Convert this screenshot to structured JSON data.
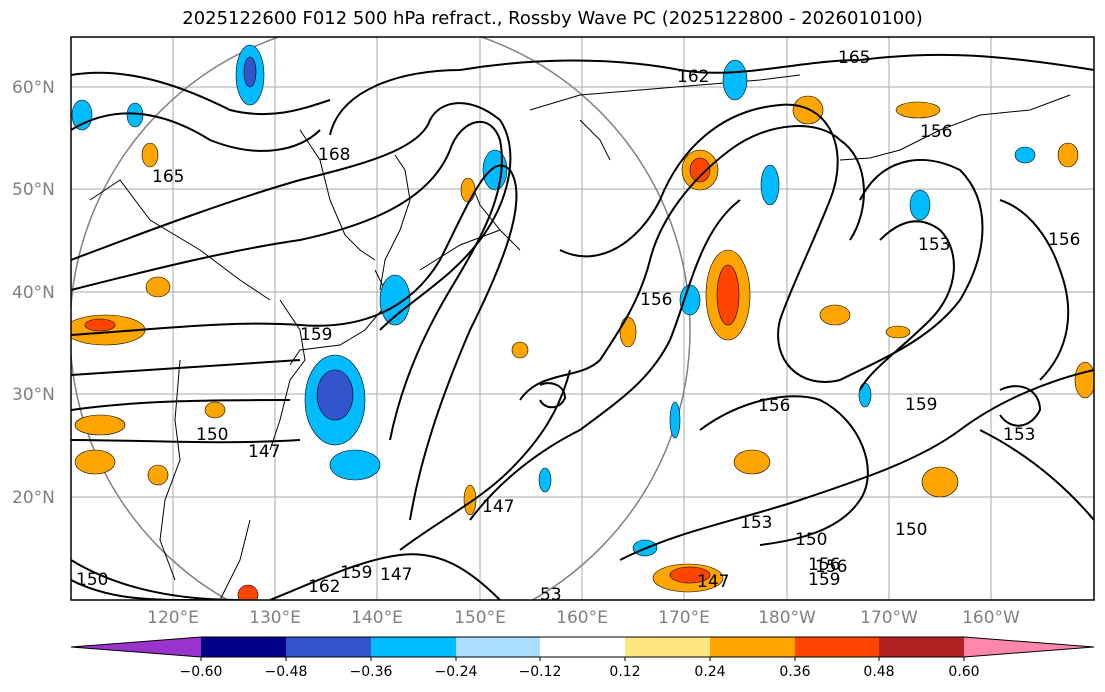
{
  "title": "2025122600 F012 500 hPa refract., Rossby Wave PC (2025122800 - 2026010100)",
  "map": {
    "lat_labels": [
      "60°N",
      "50°N",
      "40°N",
      "30°N",
      "20°N"
    ],
    "lon_labels": [
      "120°E",
      "130°E",
      "140°E",
      "150°E",
      "160°E",
      "170°E",
      "180°W",
      "170°W",
      "160°W"
    ],
    "contour_labels": [
      "165",
      "162",
      "156",
      "165",
      "168",
      "153",
      "156",
      "159",
      "156",
      "156",
      "159",
      "153",
      "150",
      "147",
      "147",
      "153",
      "150",
      "156",
      "159",
      "159",
      "162",
      "147",
      "150",
      "147",
      "53",
      "150",
      "156"
    ]
  },
  "colorbar": {
    "tick_labels": [
      "−0.60",
      "−0.48",
      "−0.36",
      "−0.24",
      "−0.12",
      "0.12",
      "0.24",
      "0.36",
      "0.48",
      "0.60"
    ],
    "colors": [
      "#9933cc",
      "#000088",
      "#3355cc",
      "#00bbff",
      "#aaddff",
      "#ffffff",
      "#ffe680",
      "#ffa500",
      "#ff4500",
      "#b22222",
      "#ff88aa"
    ]
  }
}
